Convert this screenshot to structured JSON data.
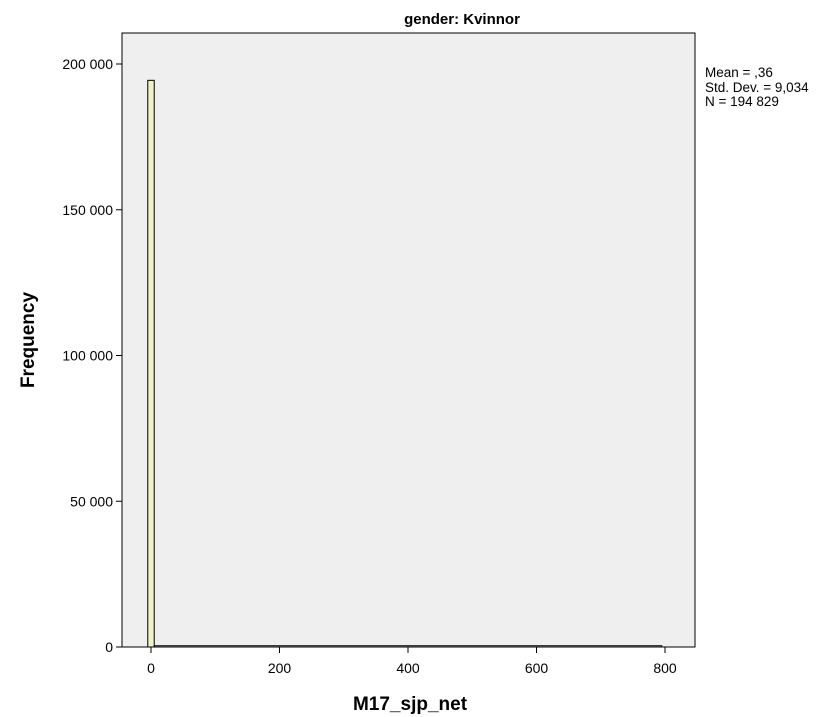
{
  "chart_data": {
    "type": "bar",
    "title": "gender: Kvinnor",
    "xlabel": "M17_sjp_net",
    "ylabel": "Frequency",
    "xlim": [
      -50,
      820
    ],
    "ylim": [
      0,
      210000
    ],
    "x_ticks": [
      0,
      200,
      400,
      600,
      800
    ],
    "x_tick_labels": [
      "0",
      "200",
      "400",
      "600",
      "800"
    ],
    "y_ticks": [
      0,
      50000,
      100000,
      150000,
      200000
    ],
    "y_tick_labels": [
      "0",
      "50 000",
      "100 000",
      "150 000",
      "200 000"
    ],
    "bin_width": 10,
    "bins": [
      {
        "x_start": -5,
        "x_end": 5,
        "value": 194400
      },
      {
        "x_start": 5,
        "x_end": 795,
        "value": 429
      }
    ],
    "grid": false,
    "stats": {
      "mean": "Mean = ,36",
      "std": "Std. Dev. = 9,034",
      "n": "N = 194 829"
    },
    "colors": {
      "plot_background": "#efefef",
      "bar_fill": "#f1f1c7",
      "bar_stroke": "#000000"
    }
  }
}
